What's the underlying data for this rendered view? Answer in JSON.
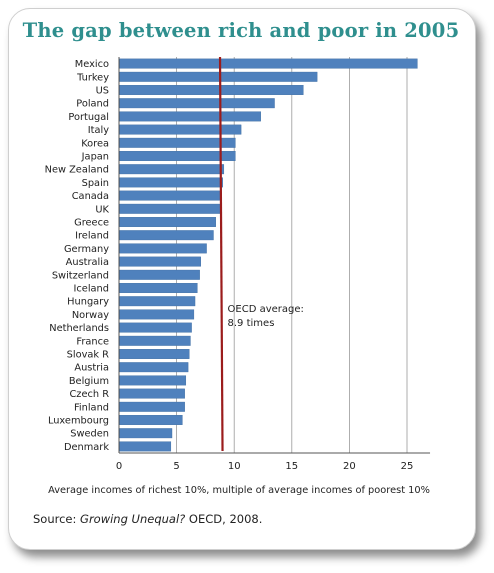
{
  "title": "The gap between rich and poor in 2005",
  "source": {
    "prefix": "Source: ",
    "work": "Growing Unequal?",
    "suffix": " OECD, 2008."
  },
  "colors": {
    "bar": "#4f81bd",
    "reference_line": "#9b1c1c",
    "title": "#2f8f8e",
    "grid": "#9a9a9a"
  },
  "chart_data": {
    "type": "bar",
    "orientation": "horizontal",
    "categories": [
      "Mexico",
      "Turkey",
      "US",
      "Poland",
      "Portugal",
      "Italy",
      "Korea",
      "Japan",
      "New Zealand",
      "Spain",
      "Canada",
      "UK",
      "Greece",
      "Ireland",
      "Germany",
      "Australia",
      "Switzerland",
      "Iceland",
      "Hungary",
      "Norway",
      "Netherlands",
      "France",
      "Slovak R",
      "Austria",
      "Belgium",
      "Czech R",
      "Finland",
      "Luxembourg",
      "Sweden",
      "Denmark"
    ],
    "values": [
      25.9,
      17.2,
      16.0,
      13.5,
      12.3,
      10.6,
      10.1,
      10.1,
      9.1,
      9.0,
      8.9,
      8.8,
      8.4,
      8.2,
      7.6,
      7.1,
      7.0,
      6.8,
      6.6,
      6.5,
      6.3,
      6.2,
      6.1,
      6.0,
      5.8,
      5.7,
      5.7,
      5.5,
      4.6,
      4.5
    ],
    "xlabel": "Average incomes of richest 10%, multiple of average incomes of poorest 10%",
    "xlim": [
      0,
      27
    ],
    "xticks": [
      0,
      5,
      10,
      15,
      20,
      25
    ],
    "grid": "vertical",
    "reference_line": {
      "value": 8.9,
      "label_line1": "OECD average:",
      "label_line2": "8.9 times"
    }
  }
}
